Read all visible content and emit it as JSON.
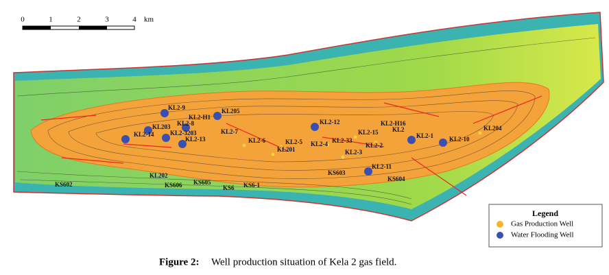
{
  "scale_bar": {
    "ticks": [
      "0",
      "1",
      "2",
      "3",
      "4"
    ],
    "unit": "km"
  },
  "wells": [
    "KL2-9",
    "KL2-H1",
    "KL205",
    "KL2-8",
    "KL203",
    "KL2-14",
    "KL2-3203",
    "KL2-13",
    "KL2-12",
    "KL2-1",
    "KL2-10",
    "KL2-11",
    "KL2-7",
    "KL2-6",
    "KL2-5",
    "KL201",
    "KL2-4",
    "KL2-33",
    "KL2-15",
    "KL2-H16",
    "KL2",
    "KL2-2",
    "KL2-3",
    "KL204",
    "KL202",
    "KS603",
    "KS604",
    "KS605",
    "KS606",
    "KS602",
    "KS6",
    "KS6-1"
  ],
  "legend": {
    "title": "Legend",
    "items": [
      "Gas Production Well",
      "Water Flooding Well"
    ]
  },
  "caption": {
    "label": "Figure 2:",
    "text": "Well production situation of Kela 2 gas field."
  }
}
